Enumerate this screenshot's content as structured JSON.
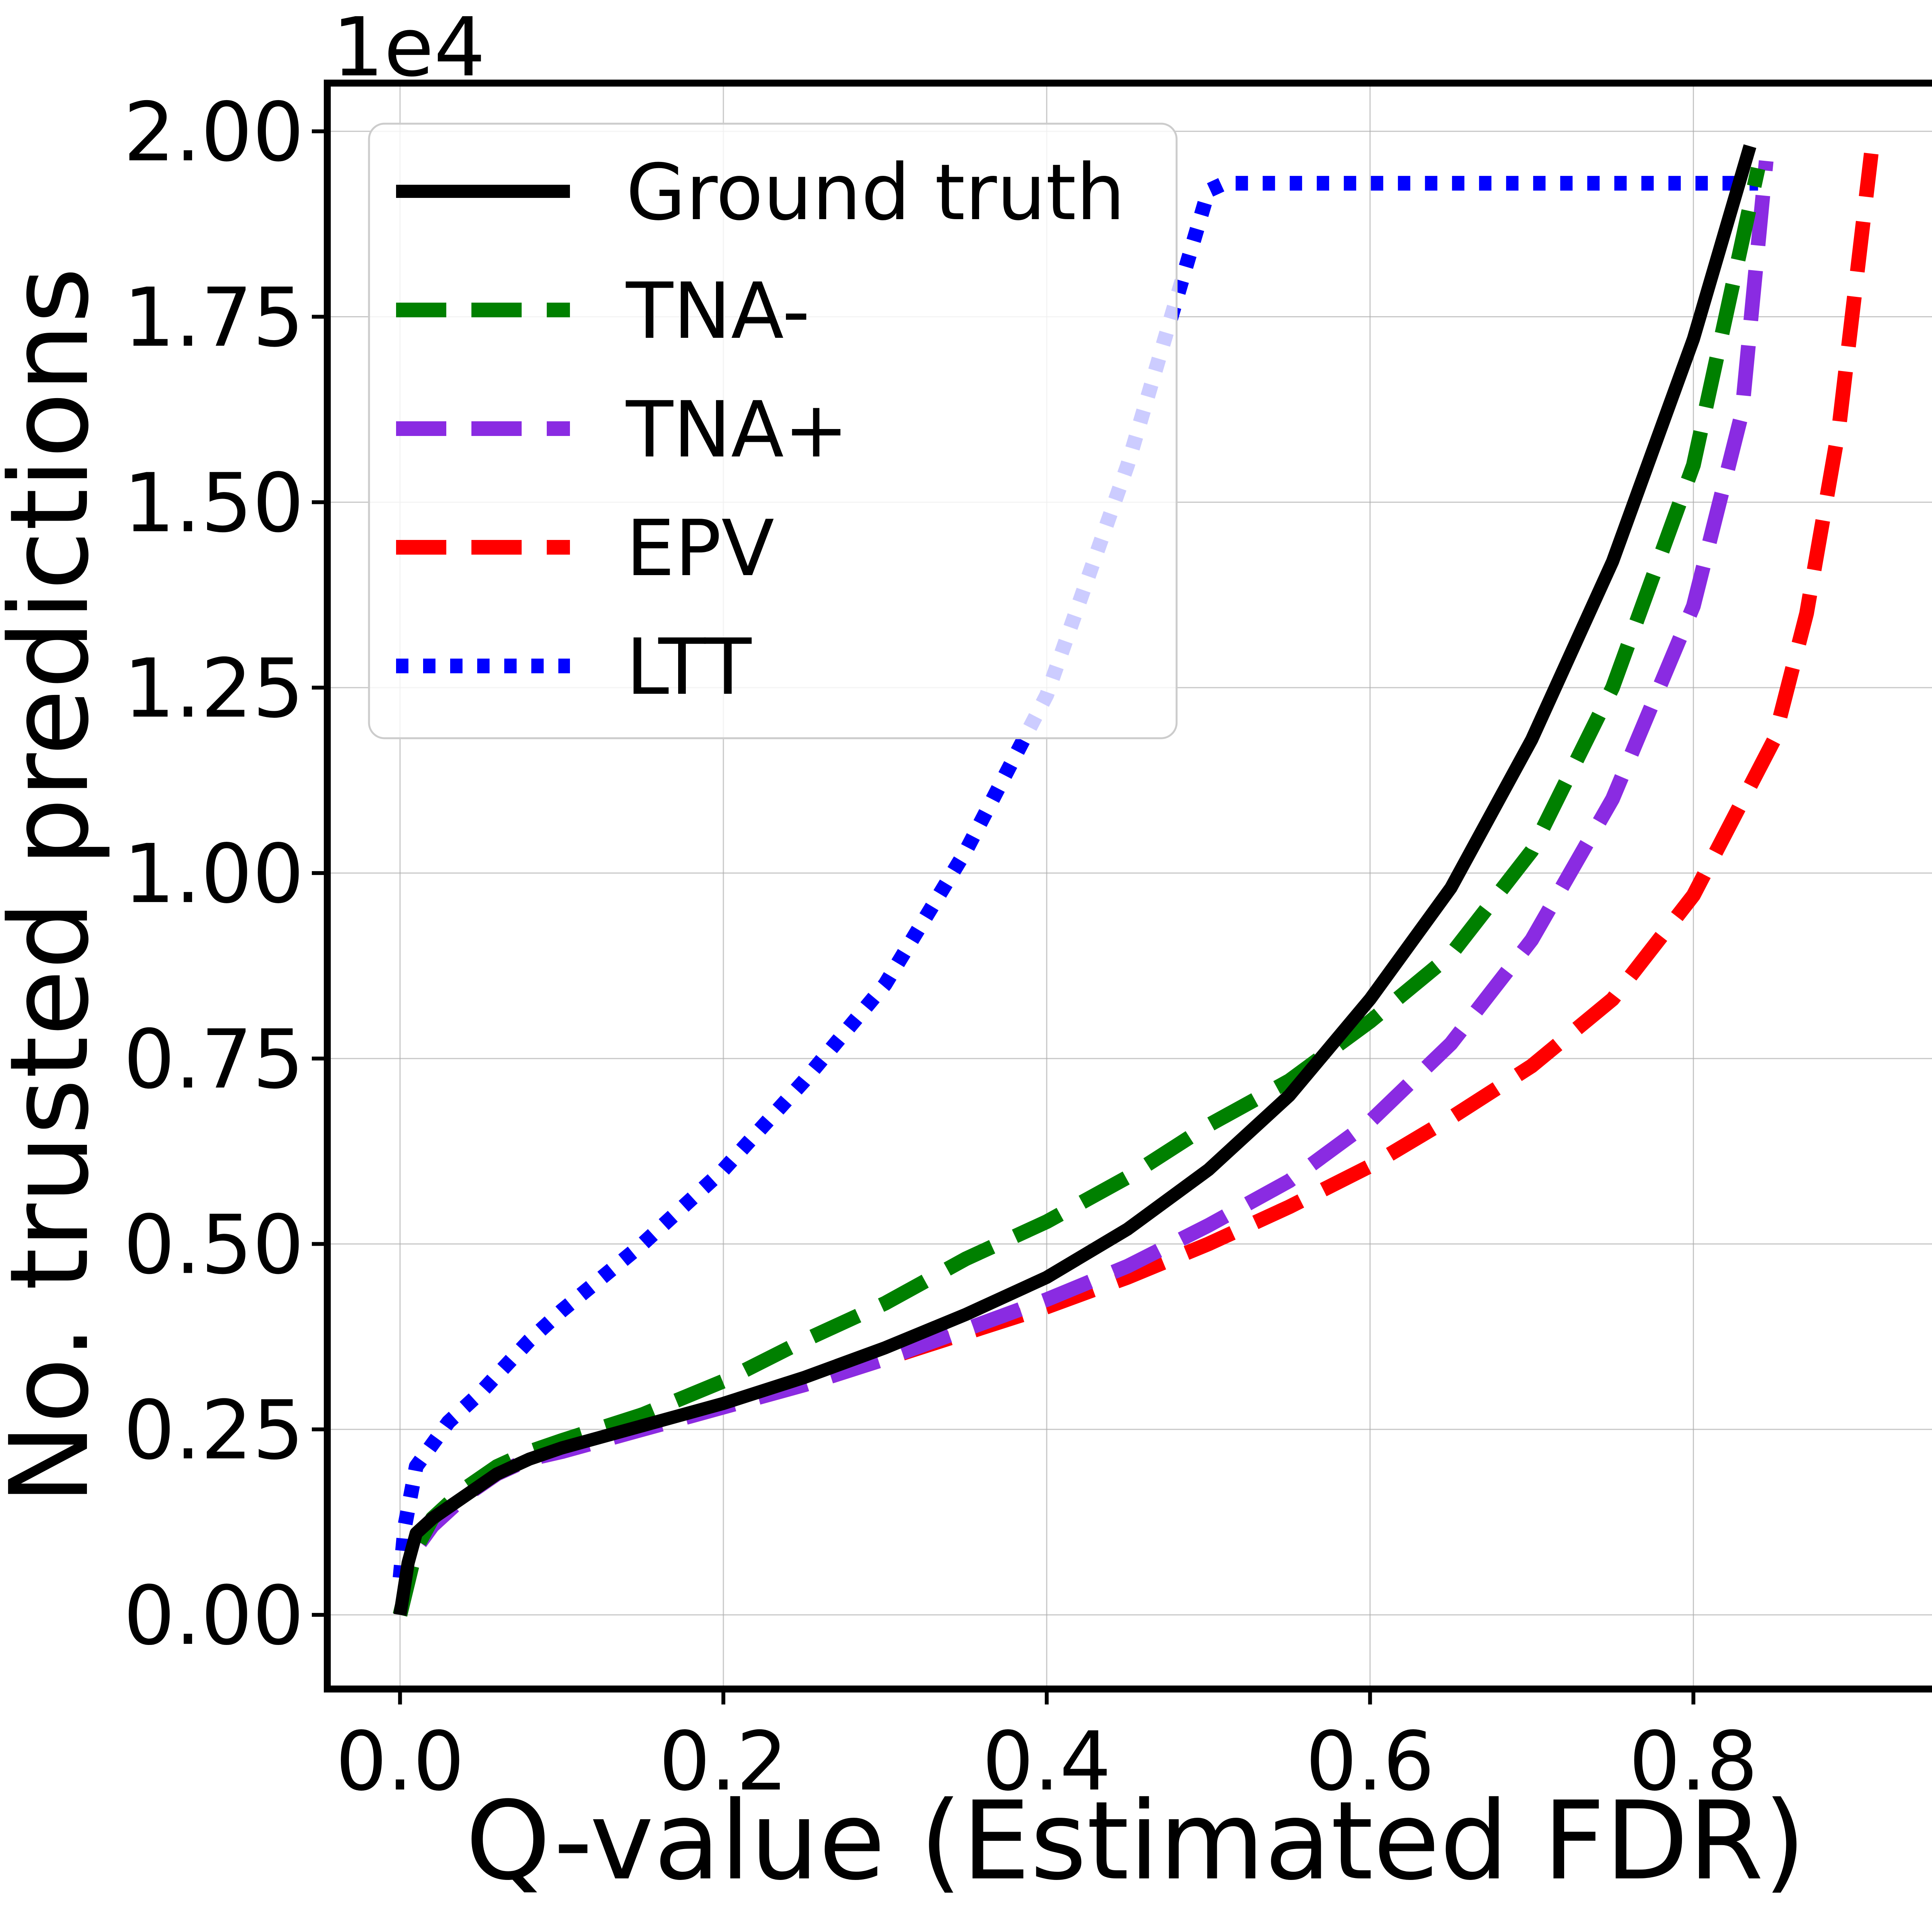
{
  "chart_data": {
    "type": "line",
    "xlabel": "Q-value (Estimated FDR)",
    "ylabel": "No. trusted predictions",
    "y_offset_label": "1e4",
    "xlim": [
      -0.045,
      0.955
    ],
    "ylim": [
      -0.1,
      2.065
    ],
    "x_ticks": [
      0.0,
      0.2,
      0.4,
      0.6,
      0.8
    ],
    "x_tick_labels": [
      "0.0",
      "0.2",
      "0.4",
      "0.6",
      "0.8"
    ],
    "y_ticks": [
      0.0,
      0.25,
      0.5,
      0.75,
      1.0,
      1.25,
      1.5,
      1.75,
      2.0
    ],
    "y_tick_labels": [
      "0.00",
      "0.25",
      "0.50",
      "0.75",
      "1.00",
      "1.25",
      "1.50",
      "1.75",
      "2.00"
    ],
    "grid": true,
    "legend_position": "top-left",
    "series": [
      {
        "name": "Ground truth",
        "color": "#000000",
        "style": "solid",
        "x": [
          0.0,
          0.005,
          0.01,
          0.02,
          0.04,
          0.06,
          0.08,
          0.1,
          0.15,
          0.2,
          0.25,
          0.3,
          0.35,
          0.4,
          0.45,
          0.5,
          0.55,
          0.6,
          0.65,
          0.7,
          0.75,
          0.8,
          0.835
        ],
        "y": [
          0.0,
          0.07,
          0.11,
          0.13,
          0.16,
          0.19,
          0.21,
          0.225,
          0.255,
          0.285,
          0.32,
          0.36,
          0.405,
          0.455,
          0.52,
          0.6,
          0.7,
          0.83,
          0.98,
          1.18,
          1.42,
          1.72,
          1.98
        ]
      },
      {
        "name": "TNA-",
        "color": "#008000",
        "style": "dashed",
        "x": [
          0.0,
          0.01,
          0.02,
          0.04,
          0.06,
          0.08,
          0.1,
          0.15,
          0.2,
          0.25,
          0.3,
          0.35,
          0.4,
          0.45,
          0.5,
          0.55,
          0.6,
          0.65,
          0.7,
          0.75,
          0.8,
          0.84
        ],
        "y": [
          0.0,
          0.09,
          0.13,
          0.17,
          0.2,
          0.22,
          0.235,
          0.27,
          0.315,
          0.37,
          0.42,
          0.48,
          0.53,
          0.59,
          0.66,
          0.72,
          0.8,
          0.89,
          1.03,
          1.25,
          1.55,
          1.95
        ]
      },
      {
        "name": "TNA+",
        "color": "#8a2be2",
        "style": "dashed",
        "x": [
          0.0,
          0.01,
          0.02,
          0.04,
          0.06,
          0.08,
          0.1,
          0.15,
          0.2,
          0.25,
          0.3,
          0.35,
          0.4,
          0.45,
          0.5,
          0.55,
          0.6,
          0.65,
          0.7,
          0.75,
          0.8,
          0.83,
          0.845
        ],
        "y": [
          0.0,
          0.09,
          0.12,
          0.16,
          0.19,
          0.21,
          0.22,
          0.25,
          0.28,
          0.31,
          0.345,
          0.385,
          0.425,
          0.47,
          0.525,
          0.585,
          0.665,
          0.77,
          0.91,
          1.1,
          1.36,
          1.62,
          1.96
        ]
      },
      {
        "name": "EPV",
        "color": "#ff0000",
        "style": "dashed",
        "x": [
          0.0,
          0.01,
          0.02,
          0.04,
          0.06,
          0.08,
          0.1,
          0.15,
          0.2,
          0.25,
          0.3,
          0.35,
          0.4,
          0.45,
          0.5,
          0.55,
          0.6,
          0.65,
          0.7,
          0.75,
          0.8,
          0.85,
          0.87,
          0.89,
          0.91
        ],
        "y": [
          0.0,
          0.09,
          0.12,
          0.16,
          0.19,
          0.21,
          0.22,
          0.25,
          0.28,
          0.31,
          0.345,
          0.38,
          0.415,
          0.455,
          0.5,
          0.55,
          0.605,
          0.67,
          0.74,
          0.83,
          0.97,
          1.18,
          1.35,
          1.6,
          1.97
        ]
      },
      {
        "name": "LTT",
        "color": "#0000ff",
        "style": "dotted",
        "x": [
          0.0,
          0.003,
          0.01,
          0.03,
          0.05,
          0.08,
          0.1,
          0.15,
          0.2,
          0.25,
          0.3,
          0.35,
          0.4,
          0.45,
          0.5,
          0.51,
          0.6,
          0.7,
          0.8,
          0.84
        ],
        "y": [
          0.05,
          0.12,
          0.2,
          0.26,
          0.3,
          0.37,
          0.41,
          0.5,
          0.6,
          0.72,
          0.85,
          1.03,
          1.24,
          1.55,
          1.92,
          1.93,
          1.93,
          1.93,
          1.93,
          1.93
        ]
      }
    ]
  }
}
